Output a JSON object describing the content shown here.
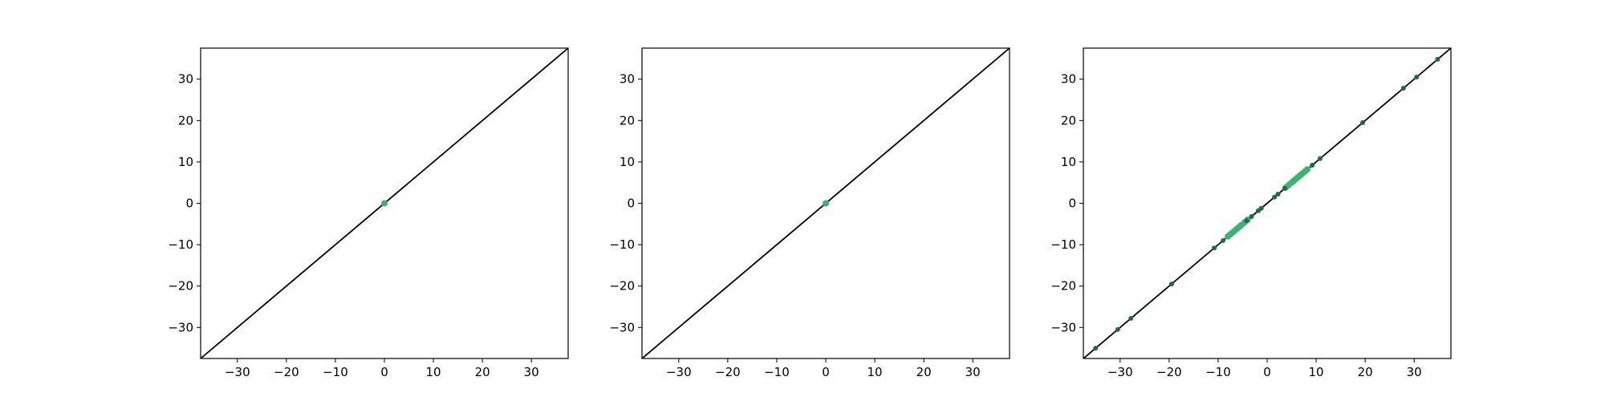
{
  "colors": {
    "background": "#ffffff",
    "axes": "#000000",
    "identity_line": "#000000",
    "point_light": "#3cb371",
    "point_dark": "#1e6b45"
  },
  "chart_data": [
    {
      "type": "scatter",
      "title": "",
      "xlabel": "",
      "ylabel": "",
      "xlim": [
        -37.5,
        37.5
      ],
      "ylim": [
        -37.5,
        37.5
      ],
      "xticks": [
        -30,
        -20,
        -10,
        0,
        10,
        20,
        30
      ],
      "yticks": [
        -30,
        -20,
        -10,
        0,
        10,
        20,
        30
      ],
      "xtick_labels": [
        "−30",
        "−20",
        "−10",
        "0",
        "10",
        "20",
        "30"
      ],
      "ytick_labels": [
        "−30",
        "−20",
        "−10",
        "0",
        "10",
        "20",
        "30"
      ],
      "grid": false,
      "reference_line": "y = x",
      "series": [
        {
          "color": "#3cb371",
          "marker_size": 4,
          "points": [
            [
              0,
              0
            ]
          ]
        }
      ]
    },
    {
      "type": "scatter",
      "title": "",
      "xlabel": "",
      "ylabel": "",
      "xlim": [
        -37.5,
        37.5
      ],
      "ylim": [
        -37.5,
        37.5
      ],
      "xticks": [
        -30,
        -20,
        -10,
        0,
        10,
        20,
        30
      ],
      "yticks": [
        -30,
        -20,
        -10,
        0,
        10,
        20,
        30
      ],
      "xtick_labels": [
        "−30",
        "−20",
        "−10",
        "0",
        "10",
        "20",
        "30"
      ],
      "ytick_labels": [
        "−30",
        "−20",
        "−10",
        "0",
        "10",
        "20",
        "30"
      ],
      "grid": false,
      "reference_line": "y = x",
      "series": [
        {
          "color": "#3cb371",
          "marker_size": 4,
          "points": [
            [
              0,
              0
            ]
          ]
        }
      ]
    },
    {
      "type": "scatter",
      "title": "",
      "xlabel": "",
      "ylabel": "",
      "xlim": [
        -37.5,
        37.5
      ],
      "ylim": [
        -37.5,
        37.5
      ],
      "xticks": [
        -30,
        -20,
        -10,
        0,
        10,
        20,
        30
      ],
      "yticks": [
        -30,
        -20,
        -10,
        0,
        10,
        20,
        30
      ],
      "xtick_labels": [
        "−30",
        "−20",
        "−10",
        "0",
        "10",
        "20",
        "30"
      ],
      "ytick_labels": [
        "−30",
        "−20",
        "−10",
        "0",
        "10",
        "20",
        "30"
      ],
      "grid": false,
      "reference_line": "y = x",
      "series": [
        {
          "color": "#3cb371",
          "marker_size": 4,
          "points": [
            [
              -8.0,
              -8.0
            ],
            [
              -7.6,
              -7.6
            ],
            [
              -7.2,
              -7.2
            ],
            [
              -6.8,
              -6.8
            ],
            [
              -6.4,
              -6.4
            ],
            [
              -6.0,
              -6.0
            ],
            [
              -5.6,
              -5.6
            ],
            [
              -5.2,
              -5.2
            ],
            [
              -4.6,
              -4.6
            ],
            [
              -4.0,
              -4.0
            ],
            [
              3.8,
              3.8
            ],
            [
              4.4,
              4.4
            ],
            [
              5.0,
              5.0
            ],
            [
              5.4,
              5.4
            ],
            [
              5.8,
              5.8
            ],
            [
              6.2,
              6.2
            ],
            [
              6.6,
              6.6
            ],
            [
              7.0,
              7.0
            ],
            [
              7.4,
              7.4
            ],
            [
              7.8,
              7.8
            ],
            [
              8.2,
              8.2
            ]
          ]
        },
        {
          "color": "#1e6b45",
          "marker_size": 3,
          "points": [
            [
              -35.0,
              -35.0
            ],
            [
              -30.5,
              -30.5
            ],
            [
              -27.8,
              -27.8
            ],
            [
              -19.5,
              -19.5
            ],
            [
              -10.8,
              -10.8
            ],
            [
              -9.0,
              -9.0
            ],
            [
              -4.2,
              -4.2
            ],
            [
              -3.2,
              -3.2
            ],
            [
              -1.8,
              -1.8
            ],
            [
              -1.2,
              -1.2
            ],
            [
              1.5,
              1.5
            ],
            [
              2.2,
              2.2
            ],
            [
              3.6,
              3.6
            ],
            [
              9.2,
              9.2
            ],
            [
              10.8,
              10.8
            ],
            [
              19.5,
              19.5
            ],
            [
              27.8,
              27.8
            ],
            [
              30.5,
              30.5
            ],
            [
              34.8,
              34.8
            ]
          ]
        }
      ]
    }
  ]
}
